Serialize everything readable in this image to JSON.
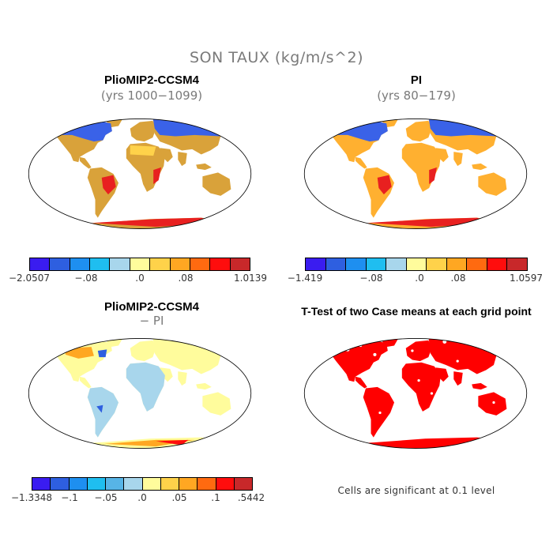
{
  "title": "SON TAUX (kg/m/s^2)",
  "panels": [
    {
      "title": "PlioMIP2-CCSM4",
      "subtitle": "(yrs 1000−1099)",
      "colorbar": {
        "colors": [
          "#3a1cf0",
          "#2e5fe0",
          "#1e8ff0",
          "#1fbef0",
          "#a8d6ec",
          "#fffc9c",
          "#ffd24a",
          "#ffa722",
          "#ff6a10",
          "#ff0d0d",
          "#c8282a"
        ],
        "tick_labels": [
          "−2.0507",
          "−.08",
          ".0",
          ".08",
          "1.0139"
        ]
      }
    },
    {
      "title": "PI",
      "subtitle": "(yrs 80−179)",
      "colorbar": {
        "colors": [
          "#3a1cf0",
          "#2e5fe0",
          "#1e8ff0",
          "#1fbef0",
          "#a8d6ec",
          "#fffc9c",
          "#ffd24a",
          "#ffa722",
          "#ff6a10",
          "#ff0d0d",
          "#c8282a"
        ],
        "tick_labels": [
          "−1.419",
          "−.08",
          ".0",
          ".08",
          "1.0597"
        ]
      }
    },
    {
      "title": "PlioMIP2-CCSM4",
      "subtitle": "− PI",
      "colorbar": {
        "colors": [
          "#3a1cf0",
          "#2e5fe0",
          "#1e8ff0",
          "#1fbef0",
          "#57b4e6",
          "#a8d6ec",
          "#fffc9c",
          "#ffd24a",
          "#ffa722",
          "#ff6a10",
          "#ff0d0d",
          "#c8282a"
        ],
        "tick_labels": [
          "−1.3348",
          "−.1",
          "−.05",
          ".0",
          ".05",
          ".1",
          ".5442"
        ]
      }
    },
    {
      "title": "T-Test of two Case means at each grid point",
      "note": "Cells are significant at 0.1 level",
      "significant_color": "#ff0000"
    }
  ]
}
